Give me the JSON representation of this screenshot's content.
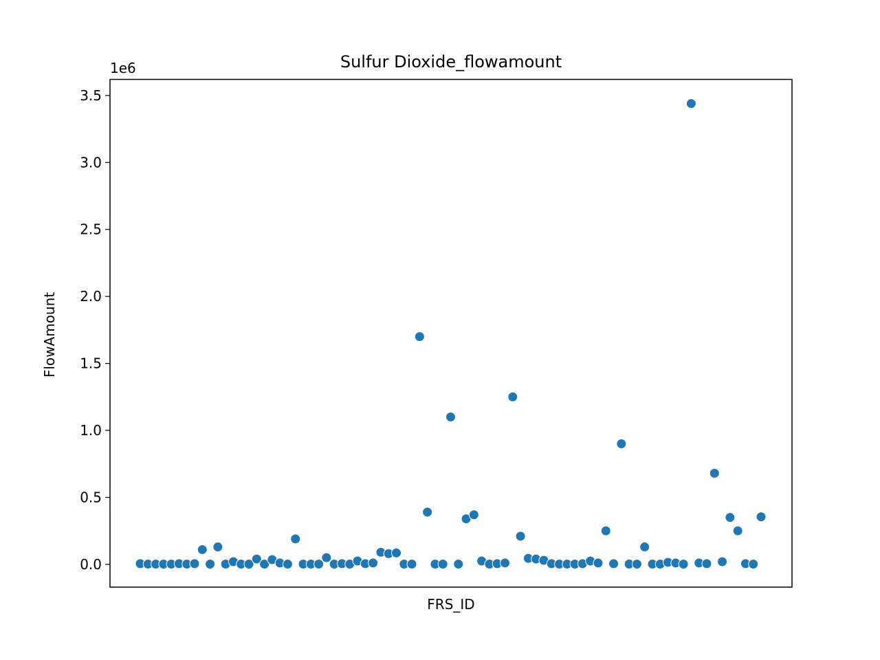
{
  "chart_data": {
    "type": "scatter",
    "title": "Sulfur Dioxide_flowamount",
    "xlabel": "FRS_ID",
    "ylabel": "FlowAmount",
    "y_offset_label": "1e6",
    "y_multiplier": 1000000,
    "ylim": [
      -170000,
      3620000
    ],
    "yticks": [
      0,
      500000,
      1000000,
      1500000,
      2000000,
      2500000,
      3000000,
      3500000
    ],
    "ytick_labels": [
      "0.0",
      "0.5",
      "1.0",
      "1.5",
      "2.0",
      "2.5",
      "3.0",
      "3.5"
    ],
    "x_ticks_shown": false,
    "grid": false,
    "legend": false,
    "marker_color": "#1f77b4",
    "series": [
      {
        "values": [
          5000,
          2000,
          2000,
          2000,
          2000,
          5000,
          2000,
          5000,
          110000,
          2000,
          130000,
          2000,
          20000,
          2000,
          2000,
          40000,
          2000,
          35000,
          10000,
          2000,
          190000,
          2000,
          2000,
          2000,
          50000,
          2000,
          5000,
          2000,
          25000,
          5000,
          10000,
          90000,
          80000,
          85000,
          2000,
          2000,
          1700000,
          390000,
          2000,
          2000,
          1100000,
          2000,
          340000,
          370000,
          25000,
          2000,
          5000,
          10000,
          1250000,
          210000,
          45000,
          40000,
          30000,
          5000,
          2000,
          2000,
          2000,
          5000,
          25000,
          10000,
          250000,
          5000,
          900000,
          2000,
          2000,
          130000,
          2000,
          2000,
          15000,
          10000,
          2000,
          3440000,
          10000,
          5000,
          680000,
          20000,
          350000,
          250000,
          5000,
          2000,
          355000
        ]
      }
    ]
  }
}
